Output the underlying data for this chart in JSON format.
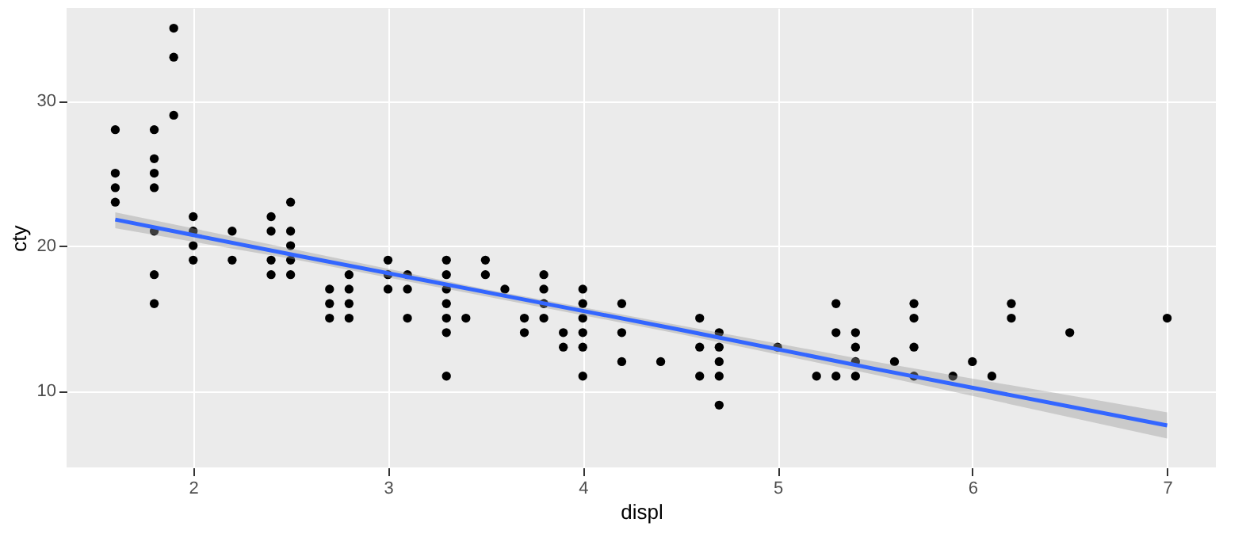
{
  "chart_data": {
    "type": "scatter",
    "xlabel": "displ",
    "ylabel": "cty",
    "xlim": [
      1.35,
      7.25
    ],
    "ylim": [
      4.7,
      36.4
    ],
    "xticks": [
      2,
      3,
      4,
      5,
      6,
      7
    ],
    "yticks": [
      10,
      20,
      30
    ],
    "grid": true,
    "series": [
      {
        "marker": "circle",
        "color": "#000000",
        "x": [
          1.6,
          1.6,
          1.6,
          1.6,
          1.8,
          1.8,
          1.8,
          1.8,
          1.8,
          1.8,
          1.8,
          1.9,
          1.9,
          1.9,
          2.0,
          2.0,
          2.0,
          2.0,
          2.2,
          2.2,
          2.4,
          2.4,
          2.4,
          2.4,
          2.5,
          2.5,
          2.5,
          2.5,
          2.5,
          2.7,
          2.7,
          2.7,
          2.8,
          2.8,
          2.8,
          2.8,
          3.0,
          3.0,
          3.0,
          3.1,
          3.1,
          3.1,
          3.3,
          3.3,
          3.3,
          3.3,
          3.3,
          3.3,
          3.3,
          3.4,
          3.5,
          3.5,
          3.6,
          3.7,
          3.7,
          3.8,
          3.8,
          3.8,
          3.8,
          3.9,
          3.9,
          4.0,
          4.0,
          4.0,
          4.0,
          4.0,
          4.0,
          4.2,
          4.2,
          4.2,
          4.4,
          4.6,
          4.6,
          4.6,
          4.7,
          4.7,
          4.7,
          4.7,
          4.7,
          5.0,
          5.2,
          5.3,
          5.3,
          5.3,
          5.4,
          5.4,
          5.4,
          5.4,
          5.6,
          5.7,
          5.7,
          5.7,
          5.7,
          5.9,
          6.0,
          6.1,
          6.2,
          6.2,
          6.5,
          7.0
        ],
        "values": [
          28,
          25,
          24,
          23,
          28,
          26,
          25,
          24,
          21,
          18,
          16,
          35,
          33,
          29,
          22,
          21,
          20,
          19,
          21,
          19,
          22,
          21,
          19,
          18,
          23,
          21,
          20,
          19,
          18,
          17,
          16,
          15,
          18,
          17,
          16,
          15,
          19,
          18,
          17,
          18,
          17,
          15,
          19,
          18,
          17,
          16,
          15,
          14,
          11,
          15,
          19,
          18,
          17,
          15,
          14,
          18,
          17,
          16,
          15,
          14,
          13,
          17,
          16,
          15,
          14,
          13,
          11,
          16,
          14,
          12,
          12,
          15,
          13,
          11,
          14,
          13,
          12,
          11,
          9,
          13,
          11,
          16,
          14,
          11,
          14,
          13,
          12,
          11,
          12,
          16,
          15,
          13,
          11,
          11,
          12,
          11,
          16,
          15,
          14,
          15
        ]
      },
      {
        "type": "line",
        "color": "#3366ff",
        "x": [
          1.6,
          2.5,
          3.5,
          4.5,
          5.5,
          7.0
        ],
        "values": [
          21.8,
          19.4,
          16.8,
          14.2,
          11.5,
          7.6
        ],
        "lower": [
          21.2,
          19.1,
          16.5,
          13.9,
          11.1,
          6.7
        ],
        "upper": [
          22.3,
          19.8,
          17.0,
          14.5,
          12.0,
          8.5
        ]
      }
    ]
  }
}
